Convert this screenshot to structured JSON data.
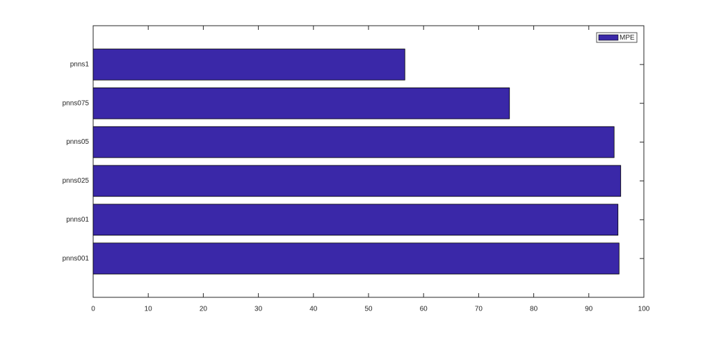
{
  "chart_data": {
    "type": "barh",
    "categories": [
      "pnns001",
      "pnns01",
      "pnns025",
      "pnns05",
      "pnns075",
      "pnns1"
    ],
    "series": [
      {
        "name": "MPE",
        "color": "#3a28a8",
        "values": [
          95.5,
          95.3,
          95.8,
          94.6,
          75.6,
          56.6
        ]
      }
    ],
    "xlim": [
      0,
      100
    ],
    "xticks": [
      0,
      10,
      20,
      30,
      40,
      50,
      60,
      70,
      80,
      90,
      100
    ],
    "grid": false,
    "legend": "upper right"
  }
}
